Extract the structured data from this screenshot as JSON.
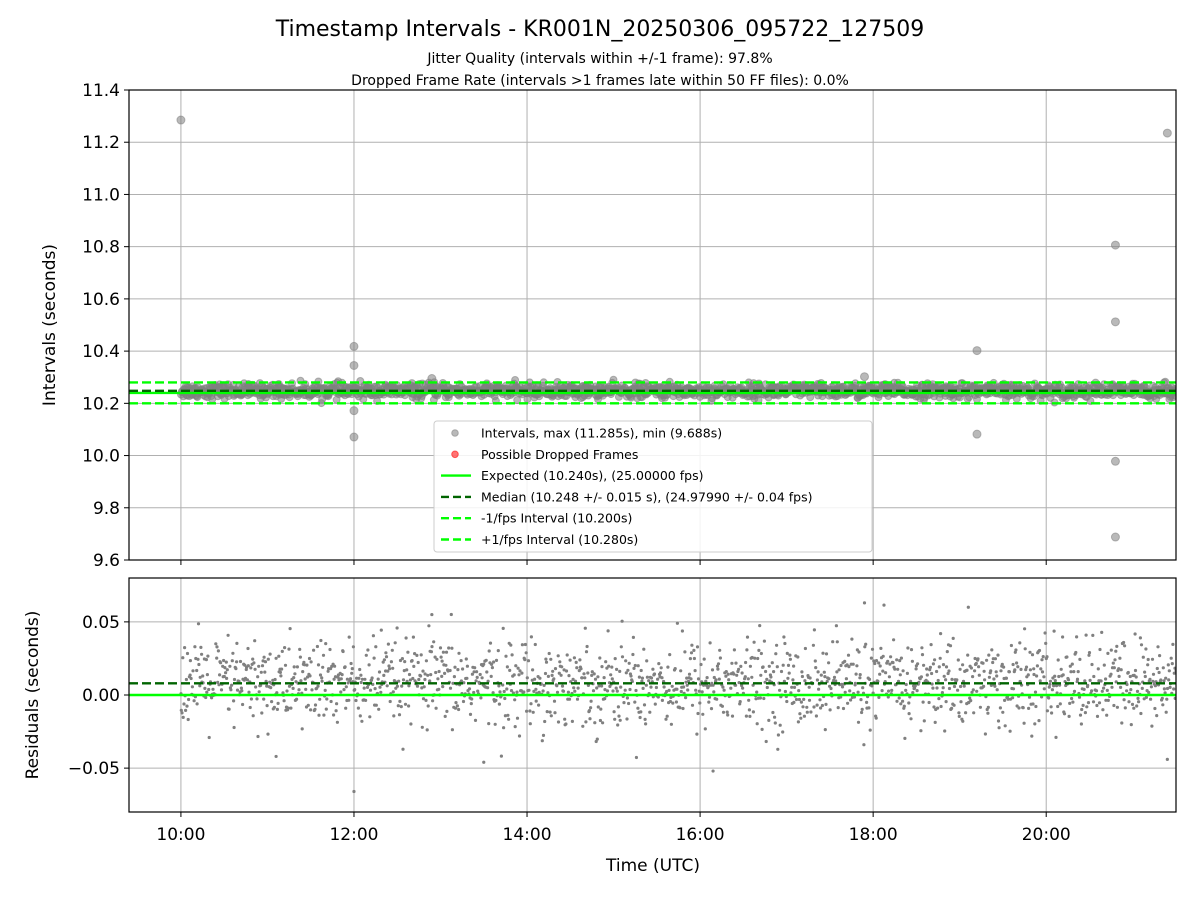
{
  "chart_data": [
    {
      "type": "scatter",
      "title": "Timestamp Intervals - KR001N_20250306_095722_127509",
      "subtitle_lines": [
        "Jitter Quality (intervals within +/-1 frame): 97.8%",
        "Dropped Frame Rate (intervals >1 frames late within 50 FF files): 0.0%"
      ],
      "xlabel": "",
      "ylabel": "Intervals (seconds)",
      "xlim_hours": [
        9.4,
        21.5
      ],
      "ylim": [
        9.6,
        11.4
      ],
      "yticks": [
        9.6,
        9.8,
        10.0,
        10.2,
        10.4,
        10.6,
        10.8,
        11.0,
        11.2,
        11.4
      ],
      "ytick_labels": [
        "9.6",
        "9.8",
        "10.0",
        "10.2",
        "10.4",
        "10.6",
        "10.8",
        "11.0",
        "11.2",
        "11.4"
      ],
      "grid": true,
      "legend_placement": "lower-center",
      "x_range_hours": [
        10.0,
        21.5
      ],
      "point_count": 1650,
      "band": {
        "center": 10.248,
        "spread": 0.015
      },
      "outliers": [
        {
          "x": 10.0,
          "y": 11.285
        },
        {
          "x": 12.0,
          "y": 10.418
        },
        {
          "x": 12.0,
          "y": 10.345
        },
        {
          "x": 12.0,
          "y": 10.172
        },
        {
          "x": 12.0,
          "y": 10.071
        },
        {
          "x": 12.9,
          "y": 10.295
        },
        {
          "x": 17.9,
          "y": 10.302
        },
        {
          "x": 19.2,
          "y": 10.402
        },
        {
          "x": 19.2,
          "y": 10.082
        },
        {
          "x": 20.8,
          "y": 10.806
        },
        {
          "x": 20.8,
          "y": 10.512
        },
        {
          "x": 20.8,
          "y": 9.978
        },
        {
          "x": 20.8,
          "y": 9.688
        },
        {
          "x": 21.4,
          "y": 11.235
        }
      ],
      "lines": [
        {
          "name": "Expected (10.240s), (25.00000 fps)",
          "y": 10.24,
          "color": "#00ff00",
          "dash": false
        },
        {
          "name": "Median (10.248 +/- 0.015 s), (24.97990 +/- 0.04 fps)",
          "y": 10.248,
          "color": "#006400",
          "dash": true
        },
        {
          "name": "-1/fps Interval (10.200s)",
          "y": 10.2,
          "color": "#00ff00",
          "dash": true
        },
        {
          "name": "+1/fps Interval (10.280s)",
          "y": 10.28,
          "color": "#00ff00",
          "dash": true
        }
      ],
      "legend": [
        {
          "label": "Intervals, max (11.285s), min (9.688s)",
          "kind": "marker",
          "color": "#808080"
        },
        {
          "label": "Possible Dropped Frames",
          "kind": "marker",
          "color": "#ff0000"
        },
        {
          "label": "Expected (10.240s), (25.00000 fps)",
          "kind": "line",
          "color": "#00ff00",
          "dash": false
        },
        {
          "label": "Median (10.248 +/- 0.015 s), (24.97990 +/- 0.04 fps)",
          "kind": "line",
          "color": "#006400",
          "dash": true
        },
        {
          "label": "-1/fps Interval (10.200s)",
          "kind": "line",
          "color": "#00ff00",
          "dash": true
        },
        {
          "label": "+1/fps Interval (10.280s)",
          "kind": "line",
          "color": "#00ff00",
          "dash": true
        }
      ]
    },
    {
      "type": "scatter",
      "xlabel": "Time (UTC)",
      "ylabel": "Residuals (seconds)",
      "xlim_hours": [
        9.4,
        21.5
      ],
      "ylim": [
        -0.08,
        0.08
      ],
      "xticks_hours": [
        10,
        12,
        14,
        16,
        18,
        20
      ],
      "xtick_labels": [
        "10:00",
        "12:00",
        "14:00",
        "16:00",
        "18:00",
        "20:00"
      ],
      "yticks": [
        -0.05,
        0.0,
        0.05
      ],
      "ytick_labels": [
        "−0.05",
        "0.00",
        "0.05"
      ],
      "grid": true,
      "x_range_hours": [
        10.0,
        21.5
      ],
      "point_count": 1650,
      "band": {
        "center": 0.008,
        "spread": 0.015
      },
      "outliers": [
        {
          "x": 12.0,
          "y": -0.066
        },
        {
          "x": 16.15,
          "y": -0.052
        },
        {
          "x": 17.9,
          "y": 0.063
        },
        {
          "x": 12.9,
          "y": 0.055
        },
        {
          "x": 19.1,
          "y": 0.06
        },
        {
          "x": 11.1,
          "y": -0.042
        },
        {
          "x": 13.5,
          "y": -0.046
        },
        {
          "x": 21.4,
          "y": -0.044
        }
      ],
      "lines": [
        {
          "name": "Median",
          "y": 0.008,
          "color": "#006400",
          "dash": true
        },
        {
          "name": "Expected",
          "y": 0.0,
          "color": "#00ff00",
          "dash": false
        }
      ]
    }
  ],
  "colors": {
    "points": "#808080",
    "expected": "#00ff00",
    "median": "#006400",
    "grid": "#b0b0b0",
    "dropped": "#ff0000"
  }
}
